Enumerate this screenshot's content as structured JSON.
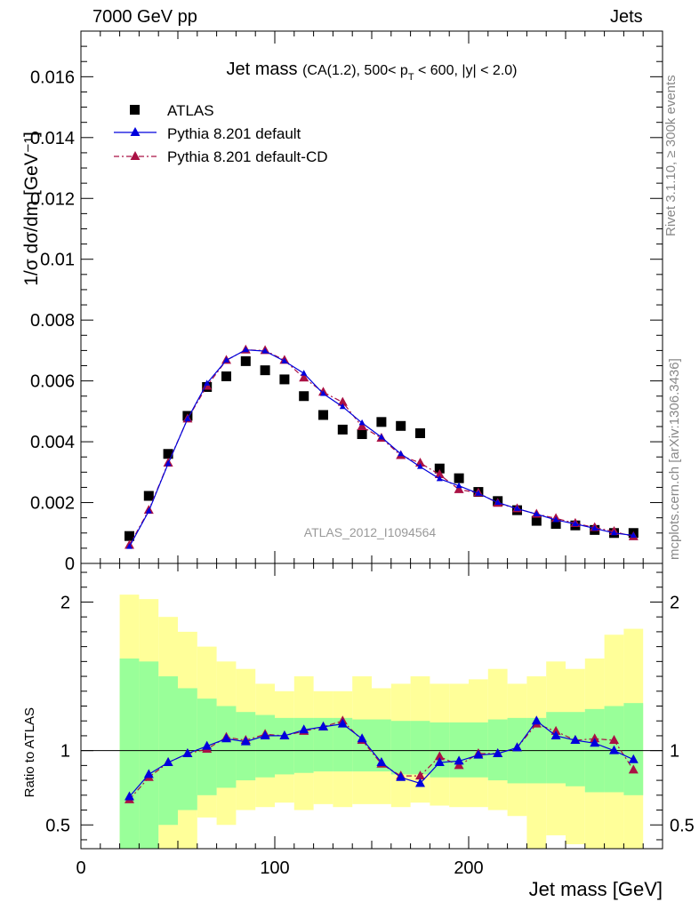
{
  "header": {
    "left": "7000 GeV pp",
    "right": "Jets"
  },
  "side_labels": {
    "rivet": "Rivet 3.1.10, ≥ 300k events",
    "mcplots": "mcplots.cern.ch [arXiv:1306.3436]"
  },
  "colors": {
    "data": "#000000",
    "mc1": "#0000dd",
    "mc2": "#aa1144",
    "band_inner": "#99ff99",
    "band_outer": "#ffff99",
    "watermark": "#999999"
  },
  "chart_data": [
    {
      "type": "scatter",
      "panel": "main",
      "title": "Jet mass",
      "subtitle": "(CA(1.2), 500< p_T < 600, |y| < 2.0)",
      "title_parts": {
        "main": "Jet mass",
        "pre": "(CA(1.2), 500< p",
        "sub": "T",
        "post": " < 600, |y| < 2.0)"
      },
      "ylabel": "1/σ dσ/dm [GeV⁻¹]",
      "watermark": "ATLAS_2012_I1094564",
      "xlim": [
        0,
        300
      ],
      "ylim": [
        0,
        0.0175
      ],
      "yticks": [
        {
          "v": 0,
          "label": "0"
        },
        {
          "v": 0.002,
          "label": "0.002"
        },
        {
          "v": 0.004,
          "label": "0.004"
        },
        {
          "v": 0.006,
          "label": "0.006"
        },
        {
          "v": 0.008,
          "label": "0.008"
        },
        {
          "v": 0.01,
          "label": "0.01"
        },
        {
          "v": 0.012,
          "label": "0.012"
        },
        {
          "v": 0.014,
          "label": "0.014"
        },
        {
          "v": 0.016,
          "label": "0.016"
        }
      ],
      "legend": [
        "ATLAS",
        "Pythia 8.201 default",
        "Pythia 8.201 default-CD"
      ],
      "x": [
        25,
        35,
        45,
        55,
        65,
        75,
        85,
        95,
        105,
        115,
        125,
        135,
        145,
        155,
        165,
        175,
        185,
        195,
        205,
        215,
        225,
        235,
        245,
        255,
        265,
        275,
        285
      ],
      "series": [
        {
          "name": "ATLAS",
          "values": [
            0.0009,
            0.00222,
            0.0036,
            0.00485,
            0.0058,
            0.00615,
            0.00665,
            0.00635,
            0.00605,
            0.0055,
            0.00488,
            0.0044,
            0.00425,
            0.00465,
            0.00452,
            0.00428,
            0.00312,
            0.0028,
            0.00235,
            0.00205,
            0.00175,
            0.0014,
            0.0013,
            0.00125,
            0.0011,
            0.001,
            0.001
          ]
        },
        {
          "name": "Pythia 8.201 default",
          "values": [
            0.00055,
            0.00172,
            0.00328,
            0.00475,
            0.00592,
            0.00668,
            0.00702,
            0.00698,
            0.00665,
            0.00625,
            0.00558,
            0.00515,
            0.00462,
            0.00415,
            0.0036,
            0.00318,
            0.00278,
            0.00255,
            0.0023,
            0.002,
            0.0018,
            0.00162,
            0.00143,
            0.0013,
            0.00115,
            0.001,
            0.00092
          ]
        },
        {
          "name": "Pythia 8.201 default-CD",
          "values": [
            0.0006,
            0.00175,
            0.0033,
            0.00475,
            0.00583,
            0.00668,
            0.00702,
            0.007,
            0.00668,
            0.0061,
            0.00563,
            0.0053,
            0.0045,
            0.00412,
            0.00355,
            0.0033,
            0.00292,
            0.00243,
            0.00232,
            0.00198,
            0.0018,
            0.00162,
            0.00148,
            0.00132,
            0.00118,
            0.00105,
            0.00088
          ]
        }
      ]
    },
    {
      "type": "line",
      "panel": "ratio",
      "ylabel": "Ratio to ATLAS",
      "xlabel": "Jet mass [GeV]",
      "xlim": [
        0,
        300
      ],
      "ylim": [
        0.34,
        2.26
      ],
      "xticks": [
        {
          "v": 0,
          "label": "0"
        },
        {
          "v": 100,
          "label": "100"
        },
        {
          "v": 200,
          "label": "200"
        }
      ],
      "yticks": [
        {
          "v": 0.5,
          "label": "0.5"
        },
        {
          "v": 1,
          "label": "1"
        },
        {
          "v": 2,
          "label": "2"
        }
      ],
      "bin_edges": [
        20,
        30,
        40,
        50,
        60,
        70,
        80,
        90,
        100,
        110,
        120,
        130,
        140,
        150,
        160,
        170,
        180,
        190,
        200,
        210,
        220,
        230,
        240,
        250,
        260,
        270,
        280,
        290
      ],
      "band_inner": {
        "low": [
          0.34,
          0.34,
          0.5,
          0.6,
          0.7,
          0.75,
          0.8,
          0.82,
          0.84,
          0.85,
          0.86,
          0.86,
          0.86,
          0.86,
          0.84,
          0.84,
          0.82,
          0.82,
          0.82,
          0.8,
          0.78,
          0.78,
          0.78,
          0.76,
          0.72,
          0.72,
          0.7
        ],
        "high": [
          1.62,
          1.6,
          1.5,
          1.42,
          1.35,
          1.3,
          1.26,
          1.24,
          1.22,
          1.22,
          1.22,
          1.22,
          1.21,
          1.21,
          1.2,
          1.2,
          1.19,
          1.19,
          1.19,
          1.21,
          1.22,
          1.22,
          1.26,
          1.26,
          1.28,
          1.3,
          1.32
        ]
      },
      "band_outer": {
        "low": [
          0.34,
          0.34,
          0.34,
          0.34,
          0.55,
          0.5,
          0.6,
          0.62,
          0.65,
          0.6,
          0.64,
          0.62,
          0.64,
          0.64,
          0.62,
          0.65,
          0.63,
          0.62,
          0.62,
          0.6,
          0.56,
          0.34,
          0.43,
          0.37,
          0.34,
          0.34,
          0.34
        ],
        "high": [
          2.05,
          2.02,
          1.9,
          1.8,
          1.7,
          1.6,
          1.55,
          1.45,
          1.4,
          1.5,
          1.4,
          1.4,
          1.5,
          1.42,
          1.45,
          1.5,
          1.45,
          1.45,
          1.48,
          1.55,
          1.45,
          1.5,
          1.6,
          1.55,
          1.62,
          1.78,
          1.82
        ]
      },
      "x": [
        25,
        35,
        45,
        55,
        65,
        75,
        85,
        95,
        105,
        115,
        125,
        135,
        145,
        155,
        165,
        175,
        185,
        195,
        205,
        215,
        225,
        235,
        245,
        255,
        265,
        275,
        285
      ],
      "series": [
        {
          "name": "Pythia 8.201 default",
          "values": [
            0.69,
            0.84,
            0.92,
            0.98,
            1.03,
            1.08,
            1.06,
            1.1,
            1.1,
            1.14,
            1.16,
            1.18,
            1.08,
            0.92,
            0.82,
            0.78,
            0.92,
            0.93,
            0.97,
            0.98,
            1.02,
            1.2,
            1.1,
            1.07,
            1.05,
            1.0,
            0.94
          ]
        },
        {
          "name": "Pythia 8.201 default-CD",
          "values": [
            0.67,
            0.82,
            0.92,
            0.98,
            1.01,
            1.09,
            1.07,
            1.11,
            1.1,
            1.13,
            1.16,
            1.2,
            1.07,
            0.91,
            0.83,
            0.83,
            0.96,
            0.9,
            0.98,
            0.98,
            1.02,
            1.18,
            1.13,
            1.07,
            1.08,
            1.07,
            0.87
          ]
        }
      ]
    }
  ]
}
